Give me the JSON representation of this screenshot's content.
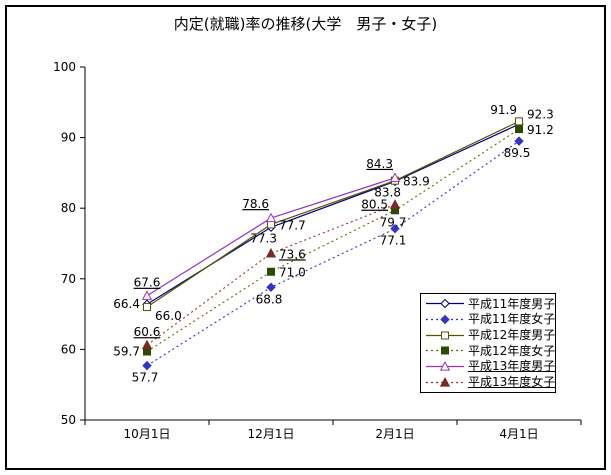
{
  "accent_colors": {
    "navy": "#000080",
    "blue": "#3333CC",
    "olive": "#555500",
    "dark_green": "#2D4A00",
    "violet": "#9933BB",
    "dark_red": "#993333",
    "axis": "#000000",
    "background": "#FFFFFF"
  },
  "chart_data": {
    "type": "line",
    "title": "内定(就職)率の推移(大学　男子・女子)",
    "categories": [
      "10月1日",
      "12月1日",
      "2月1日",
      "4月1日"
    ],
    "ylim": [
      50,
      100
    ],
    "yticks": [
      50,
      60,
      70,
      80,
      90,
      100
    ],
    "grid": false,
    "legend_position": "inside lower right",
    "series": [
      {
        "name": "平成11年度男子",
        "color": "#000080",
        "line": "solid",
        "marker": "diamond-open",
        "underline": false,
        "values": [
          66.4,
          77.3,
          83.8,
          91.9
        ],
        "label_pos": [
          "left",
          "below-left",
          "below-left",
          "above-left"
        ]
      },
      {
        "name": "平成11年度女子",
        "color": "#3333CC",
        "line": "dotted",
        "marker": "diamond-filled",
        "underline": false,
        "values": [
          57.7,
          68.8,
          77.1,
          89.5
        ],
        "label_pos": [
          "below",
          "below",
          "below",
          "below"
        ]
      },
      {
        "name": "平成12年度男子",
        "color": "#555500",
        "line": "solid",
        "marker": "square-open",
        "underline": false,
        "values": [
          66.0,
          77.7,
          83.9,
          92.3
        ],
        "label_pos": [
          "below-right",
          "right",
          "right",
          "right-up"
        ]
      },
      {
        "name": "平成12年度女子",
        "color": "#666600",
        "marker_color": "#2D4A00",
        "line": "dotted",
        "marker": "square-filled",
        "underline": false,
        "values": [
          59.7,
          71.0,
          79.7,
          91.2
        ],
        "label_pos": [
          "left",
          "right",
          "below",
          "right"
        ]
      },
      {
        "name": "平成13年度男子",
        "color": "#9933BB",
        "line": "solid",
        "marker": "triangle-open",
        "underline": true,
        "values": [
          67.6,
          78.6,
          84.3,
          null
        ],
        "label_pos": [
          "above",
          "above-left",
          "above-left",
          null
        ]
      },
      {
        "name": "平成13年度女子",
        "color": "#993333",
        "marker_color": "#7A2A20",
        "line": "dotted",
        "marker": "triangle-filled",
        "underline": true,
        "values": [
          60.6,
          73.6,
          80.5,
          null
        ],
        "label_pos": [
          "above",
          "right",
          "left",
          null
        ]
      }
    ]
  }
}
